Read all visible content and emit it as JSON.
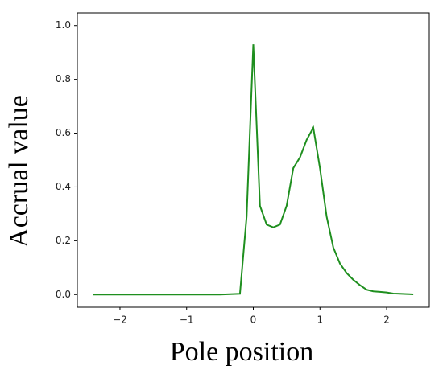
{
  "chart_data": {
    "type": "line",
    "x_label": "Pole position",
    "y_label": "Accrual value",
    "x": [
      -2.4,
      -2.0,
      -1.5,
      -1.0,
      -0.5,
      -0.2,
      -0.1,
      0.0,
      0.1,
      0.2,
      0.3,
      0.4,
      0.5,
      0.6,
      0.7,
      0.8,
      0.9,
      1.0,
      1.1,
      1.2,
      1.3,
      1.4,
      1.5,
      1.6,
      1.7,
      1.8,
      1.9,
      2.0,
      2.1,
      2.2,
      2.3,
      2.4
    ],
    "series": [
      {
        "color": "#1f8f1f",
        "values": [
          0.0,
          0.0,
          0.0,
          0.0,
          0.0,
          0.003,
          0.29,
          0.93,
          0.33,
          0.26,
          0.25,
          0.26,
          0.33,
          0.47,
          0.51,
          0.575,
          0.62,
          0.47,
          0.29,
          0.175,
          0.115,
          0.08,
          0.055,
          0.035,
          0.018,
          0.012,
          0.01,
          0.008,
          0.004,
          0.003,
          0.002,
          0.001
        ]
      }
    ],
    "xlim": [
      -2.64,
      2.64
    ],
    "ylim": [
      -0.047,
      1.047
    ],
    "xticks": [
      {
        "value": -2,
        "label": "−2"
      },
      {
        "value": -1,
        "label": "−1"
      },
      0,
      1,
      2
    ],
    "yticks": [
      {
        "value": 0,
        "label": "0.0"
      },
      {
        "value": 0.2,
        "label": "0.2"
      },
      {
        "value": 0.4,
        "label": "0.4"
      },
      {
        "value": 0.6,
        "label": "0.6"
      },
      {
        "value": 0.8,
        "label": "0.8"
      },
      {
        "value": 1,
        "label": "1.0"
      }
    ]
  }
}
